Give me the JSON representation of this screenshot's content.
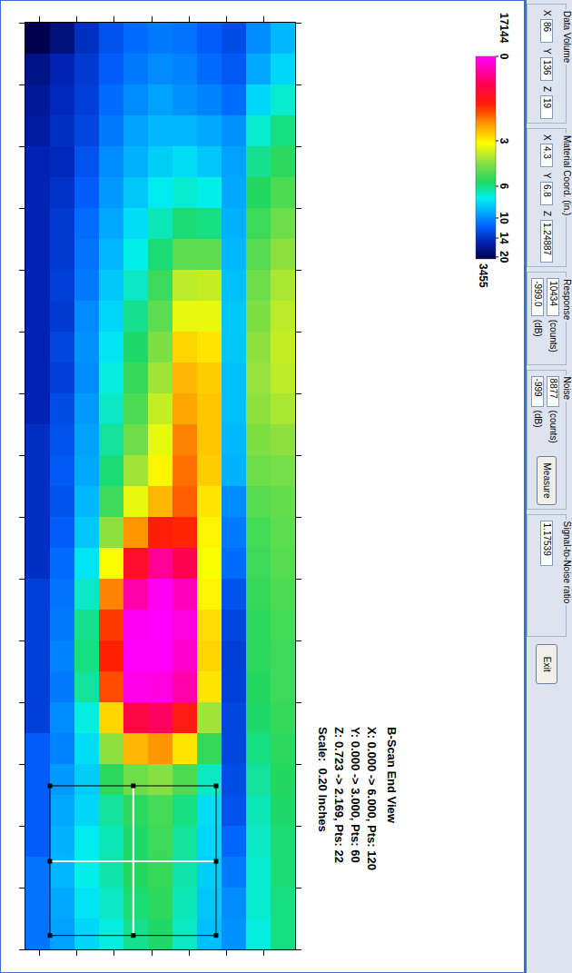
{
  "controls": {
    "data_volume": {
      "title": "Data Volume",
      "fields": [
        {
          "label": "X",
          "value": "86"
        },
        {
          "label": "Y",
          "value": "136"
        },
        {
          "label": "Z",
          "value": "19"
        }
      ]
    },
    "material_coord": {
      "title": "Material Coord. (in.)",
      "fields": [
        {
          "label": "X",
          "value": "4.3"
        },
        {
          "label": "Y",
          "value": "6.8"
        },
        {
          "label": "Z",
          "value": "1.24887"
        }
      ]
    },
    "response": {
      "title": "Response",
      "rows": [
        {
          "value": "10434",
          "unit": "(counts)"
        },
        {
          "value": "-999.0",
          "unit": "(dB)"
        }
      ]
    },
    "noise": {
      "title": "Noise",
      "rows": [
        {
          "value": "8877",
          "unit": "(counts)"
        },
        {
          "value": "-999",
          "unit": "(dB)"
        }
      ],
      "button": "Measure"
    },
    "snr": {
      "title": "Signal-to-Noise ratio",
      "value": "1.17539"
    },
    "exit": "Exit"
  },
  "chart_data": {
    "type": "heatmap",
    "title": "B-Scan End View",
    "annotations": [
      "X: 0.000 -> 6.000, Pts: 120",
      "Y: 0.000 -> 3.000, Pts: 60",
      "Z: 0.723 -> 2.169, Pts: 22",
      "Scale:  0.20 Inches"
    ],
    "x": [
      0.05,
      0.15,
      0.25,
      0.35,
      0.45,
      0.55,
      0.65,
      0.75,
      0.85,
      0.95,
      1.05,
      1.15,
      1.25,
      1.35,
      1.45,
      1.55,
      1.65,
      1.75,
      1.85,
      1.95,
      2.05,
      2.15,
      2.25,
      2.35,
      2.45,
      2.55,
      2.65,
      2.75,
      2.85,
      2.95
    ],
    "y": [
      0.789,
      0.92,
      1.052,
      1.183,
      1.315,
      1.446,
      1.578,
      1.709,
      1.841,
      1.972,
      2.103
    ],
    "z": [
      [
        3500,
        4100,
        4300,
        4400,
        4600,
        4600,
        4600,
        4600,
        4600,
        4600,
        4600,
        4600,
        4600,
        4800,
        4800,
        4800,
        4800,
        4800,
        5100,
        5100,
        5100,
        5100,
        5100,
        5600,
        5600,
        5600,
        5600,
        5900,
        5900,
        5900
      ],
      [
        4000,
        4600,
        4700,
        4800,
        4700,
        4900,
        5000,
        5000,
        5100,
        5000,
        5200,
        5100,
        5300,
        5400,
        5500,
        5400,
        5600,
        5800,
        5900,
        6000,
        6100,
        6000,
        6200,
        6100,
        6400,
        6600,
        6700,
        6800,
        6600,
        6500
      ],
      [
        4800,
        5000,
        5100,
        5200,
        5400,
        5600,
        5800,
        5900,
        6000,
        6200,
        6300,
        6200,
        6400,
        6500,
        6600,
        6800,
        7000,
        7400,
        7900,
        8300,
        8400,
        8200,
        7700,
        7300,
        7100,
        7200,
        7500,
        7600,
        7400,
        7200
      ],
      [
        5400,
        5600,
        5800,
        6000,
        6200,
        6400,
        6600,
        6800,
        7000,
        7200,
        7400,
        7700,
        7900,
        8200,
        8500,
        9000,
        10000,
        11200,
        12800,
        13600,
        13900,
        13400,
        11800,
        10000,
        8800,
        8200,
        8000,
        8100,
        7900,
        7700
      ],
      [
        5800,
        6000,
        6200,
        6500,
        6700,
        7000,
        7300,
        7600,
        7900,
        8300,
        8600,
        8900,
        9200,
        9600,
        10200,
        11000,
        12600,
        14600,
        16200,
        17000,
        17100,
        16900,
        15000,
        12200,
        9600,
        8800,
        8600,
        8700,
        8500,
        8300
      ],
      [
        6000,
        6200,
        6500,
        6800,
        7100,
        7500,
        8000,
        8500,
        9000,
        9400,
        9800,
        10200,
        10600,
        11000,
        11400,
        12200,
        14000,
        16000,
        17000,
        17144,
        17100,
        16800,
        15400,
        12600,
        9900,
        9100,
        9000,
        8900,
        8800,
        8600
      ],
      [
        5900,
        6100,
        6300,
        6800,
        7300,
        7800,
        8500,
        9400,
        10500,
        11000,
        11800,
        12200,
        12400,
        12800,
        13000,
        13200,
        13800,
        15200,
        16400,
        16800,
        16600,
        16200,
        14200,
        11600,
        9200,
        8400,
        8200,
        8100,
        8000,
        7900
      ],
      [
        5600,
        5800,
        6100,
        6600,
        7000,
        7600,
        8400,
        9400,
        10600,
        11000,
        11600,
        11900,
        12000,
        12000,
        11900,
        11600,
        11400,
        11200,
        11400,
        11700,
        11800,
        11600,
        10200,
        8900,
        7900,
        7300,
        7200,
        7100,
        7000,
        6900
      ],
      [
        5300,
        5500,
        5800,
        6300,
        6500,
        6600,
        6700,
        6800,
        6900,
        7000,
        7000,
        6900,
        6900,
        6800,
        6700,
        6200,
        6000,
        5800,
        5400,
        5200,
        5100,
        5100,
        5200,
        5200,
        5300,
        5400,
        5700,
        6000,
        6200,
        6300
      ],
      [
        6200,
        6600,
        7200,
        7800,
        8300,
        8700,
        9000,
        9300,
        9600,
        9800,
        10000,
        10100,
        10000,
        9800,
        9600,
        9300,
        9100,
        9000,
        8900,
        8800,
        8800,
        8700,
        8600,
        8400,
        8200,
        8000,
        7900,
        7800,
        7800,
        7700
      ],
      [
        6800,
        7200,
        7800,
        8400,
        8800,
        9200,
        9600,
        10000,
        10300,
        10500,
        10600,
        10500,
        10300,
        10000,
        9700,
        9500,
        9400,
        9300,
        9200,
        9100,
        9000,
        9000,
        8900,
        8800,
        8700,
        8600,
        8500,
        8500,
        8400,
        8400
      ]
    ],
    "xlim": [
      0,
      3
    ],
    "ylim": [
      0.723,
      2.169
    ],
    "xticks": [
      0,
      0.2,
      0.4,
      0.6,
      0.8,
      1,
      1.2,
      1.4,
      1.6,
      1.8,
      2,
      2.2,
      2.4,
      2.6,
      2.8,
      3
    ],
    "yticks": [
      0.8,
      1,
      1.2,
      1.4,
      1.6,
      1.8,
      2
    ],
    "tick_labels": false,
    "grid": false,
    "colorbar": {
      "range": [
        3455,
        17144
      ],
      "ticks": [
        {
          "value": 17144,
          "label": "0"
        },
        {
          "value": 11435,
          "label": "3"
        },
        {
          "value": 8369,
          "label": "6"
        },
        {
          "value": 6220,
          "label": "10"
        },
        {
          "value": 4865,
          "label": "14"
        },
        {
          "value": 3590,
          "label": "20"
        }
      ]
    }
  }
}
